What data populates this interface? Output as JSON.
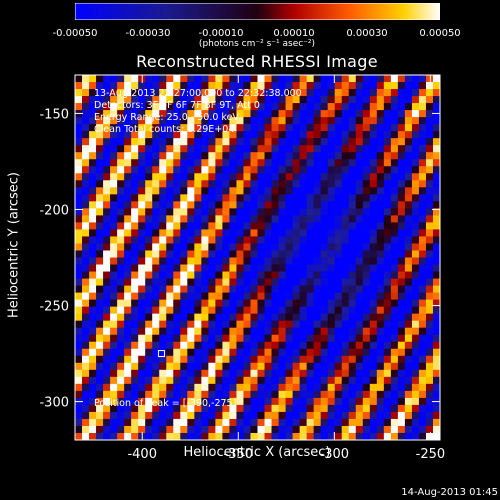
{
  "colorbar": {
    "ticks": [
      "-0.00050",
      "-0.00030",
      "-0.00010",
      "0.00010",
      "0.00030",
      "0.00050"
    ],
    "units": "(photons cm⁻² s⁻¹ asec⁻²)"
  },
  "title": "Reconstructed RHESSI Image",
  "info": {
    "time_range": "13-Aug-2013 22:27:00.000 to 22:32:38.000",
    "detectors": "Detectors: 3F 5F 6F 7F 8F 9T, Att 0",
    "energy": "Energy Range: 25.0 - 50.0 keV",
    "clean": "Clean    Total counts: 1.29E+04"
  },
  "peak": "Position of Peak = [-390,-275]",
  "x_axis": {
    "label": "Heliocentric X (arcsec)",
    "ticks": [
      "-400",
      "-350",
      "-300",
      "-250"
    ],
    "range": [
      -435,
      -245
    ]
  },
  "y_axis": {
    "label": "Heliocentric Y (arcsec)",
    "ticks": [
      "-150",
      "-200",
      "-250",
      "-300"
    ],
    "range": [
      -320,
      -130
    ]
  },
  "timestamp": "14-Aug-2013 01:45"
}
